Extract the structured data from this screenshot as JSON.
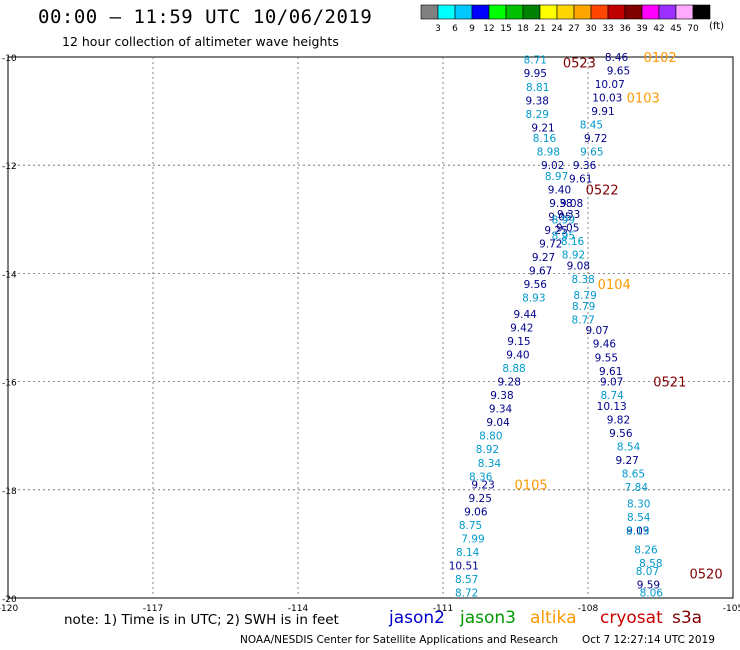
{
  "header": {
    "title": "00:00 – 11:59 UTC 10/06/2019",
    "subtitle": "12 hour collection of altimeter wave heights"
  },
  "colorbar": {
    "unit": "(ft)",
    "levels": [
      "3",
      "6",
      "9",
      "12",
      "15",
      "18",
      "21",
      "24",
      "27",
      "30",
      "33",
      "36",
      "39",
      "42",
      "45",
      "70"
    ],
    "colors": [
      "#808080",
      "#00ffff",
      "#00c8ff",
      "#0000ff",
      "#00ff00",
      "#00c000",
      "#008000",
      "#ffff00",
      "#ffd700",
      "#ffa500",
      "#ff4500",
      "#c00000",
      "#800000",
      "#ff00ff",
      "#9b30ff",
      "#ffaaff",
      "#000000"
    ]
  },
  "chart_data": {
    "type": "scatter",
    "title": "00:00 – 11:59 UTC 10/06/2019",
    "subtitle": "12 hour collection of altimeter wave heights",
    "xlim": [
      -120,
      -105
    ],
    "ylim": [
      -20,
      -10
    ],
    "x_ticks": [
      "-120",
      "-117",
      "-114",
      "-111",
      "-108",
      "-105"
    ],
    "y_ticks": [
      "-10",
      "-12",
      "-14",
      "-16",
      "-18",
      "-20"
    ],
    "grid": "dashed",
    "series": [
      {
        "name": "jason2",
        "color": "#00008b",
        "points": [
          {
            "lon": -109.09,
            "lat": -10.3,
            "label": "9.95"
          },
          {
            "lon": -109.05,
            "lat": -10.8,
            "label": "9.38"
          },
          {
            "lon": -108.93,
            "lat": -11.3,
            "label": "9.21"
          },
          {
            "lon": -108.73,
            "lat": -12.0,
            "label": "9.02"
          },
          {
            "lon": -108.59,
            "lat": -12.45,
            "label": "9.40"
          },
          {
            "lon": -108.56,
            "lat": -12.7,
            "label": "9.38"
          },
          {
            "lon": -108.58,
            "lat": -12.95,
            "label": "9.05"
          },
          {
            "lon": -108.66,
            "lat": -13.2,
            "label": "9.25"
          },
          {
            "lon": -108.77,
            "lat": -13.45,
            "label": "9.72"
          },
          {
            "lon": -108.92,
            "lat": -13.7,
            "label": "9.27"
          },
          {
            "lon": -108.98,
            "lat": -13.95,
            "label": "9.67"
          },
          {
            "lon": -109.09,
            "lat": -14.2,
            "label": "9.56"
          },
          {
            "lon": -109.3,
            "lat": -14.75,
            "label": "9.44"
          },
          {
            "lon": -109.37,
            "lat": -15.0,
            "label": "9.42"
          },
          {
            "lon": -109.43,
            "lat": -15.25,
            "label": "9.15"
          },
          {
            "lon": -109.45,
            "lat": -15.5,
            "label": "9.40"
          },
          {
            "lon": -109.63,
            "lat": -16.0,
            "label": "9.28"
          },
          {
            "lon": -109.78,
            "lat": -16.25,
            "label": "9.38"
          },
          {
            "lon": -109.81,
            "lat": -16.5,
            "label": "9.34"
          },
          {
            "lon": -109.86,
            "lat": -16.75,
            "label": "9.04"
          },
          {
            "lon": -110.17,
            "lat": -17.9,
            "label": "9.23"
          },
          {
            "lon": -110.23,
            "lat": -18.15,
            "label": "9.25"
          },
          {
            "lon": -110.32,
            "lat": -18.4,
            "label": "9.06"
          },
          {
            "lon": -110.57,
            "lat": -19.4,
            "label": "10.51"
          },
          {
            "lon": -107.37,
            "lat": -10.25,
            "label": "9.65"
          },
          {
            "lon": -107.55,
            "lat": -10.5,
            "label": "10.07"
          },
          {
            "lon": -107.6,
            "lat": -10.75,
            "label": "10.03"
          },
          {
            "lon": -107.69,
            "lat": -11.0,
            "label": "9.91"
          },
          {
            "lon": -107.84,
            "lat": -11.5,
            "label": "9.72"
          },
          {
            "lon": -108.07,
            "lat": -12.0,
            "label": "9.36"
          },
          {
            "lon": -108.15,
            "lat": -12.25,
            "label": "9.61"
          },
          {
            "lon": -108.34,
            "lat": -12.7,
            "label": "9.08"
          },
          {
            "lon": -108.4,
            "lat": -12.9,
            "label": "9.33"
          },
          {
            "lon": -108.42,
            "lat": -13.15,
            "label": "9.05"
          },
          {
            "lon": -108.2,
            "lat": -13.85,
            "label": "9.08"
          },
          {
            "lon": -107.81,
            "lat": -15.05,
            "label": "9.07"
          },
          {
            "lon": -107.66,
            "lat": -15.3,
            "label": "9.46"
          },
          {
            "lon": -107.62,
            "lat": -15.55,
            "label": "9.55"
          },
          {
            "lon": -107.53,
            "lat": -15.8,
            "label": "9.61"
          },
          {
            "lon": -107.51,
            "lat": -16.0,
            "label": "9.07"
          },
          {
            "lon": -107.51,
            "lat": -16.45,
            "label": "10.13"
          },
          {
            "lon": -107.37,
            "lat": -16.7,
            "label": "9.82"
          },
          {
            "lon": -107.32,
            "lat": -16.95,
            "label": "9.56"
          },
          {
            "lon": -107.19,
            "lat": -17.45,
            "label": "9.27"
          },
          {
            "lon": -106.97,
            "lat": -18.75,
            "label": "9.03"
          },
          {
            "lon": -106.75,
            "lat": -19.75,
            "label": "9.59"
          },
          {
            "lon": -107.41,
            "lat": -10.0,
            "label": "8.46"
          }
        ]
      },
      {
        "name": "jason2 (light)",
        "color": "#0099cc",
        "points": [
          {
            "lon": -109.09,
            "lat": -10.05,
            "label": "8.71"
          },
          {
            "lon": -109.04,
            "lat": -10.55,
            "label": "8.81"
          },
          {
            "lon": -109.05,
            "lat": -11.05,
            "label": "8.29"
          },
          {
            "lon": -108.9,
            "lat": -11.5,
            "label": "8.16"
          },
          {
            "lon": -108.82,
            "lat": -11.75,
            "label": "8.98"
          },
          {
            "lon": -108.65,
            "lat": -12.2,
            "label": "8.97"
          },
          {
            "lon": -108.51,
            "lat": -13.0,
            "label": "8.99"
          },
          {
            "lon": -108.51,
            "lat": -13.3,
            "label": "8.95"
          },
          {
            "lon": -108.32,
            "lat": -13.4,
            "label": "8.16"
          },
          {
            "lon": -108.3,
            "lat": -13.65,
            "label": "8.92"
          },
          {
            "lon": -108.1,
            "lat": -14.1,
            "label": "8.38"
          },
          {
            "lon": -108.06,
            "lat": -14.4,
            "label": "8.79"
          },
          {
            "lon": -108.09,
            "lat": -14.6,
            "label": "8.79"
          },
          {
            "lon": -108.1,
            "lat": -14.85,
            "label": "8.77"
          },
          {
            "lon": -109.12,
            "lat": -14.45,
            "label": "8.93"
          },
          {
            "lon": -109.53,
            "lat": -15.75,
            "label": "8.88"
          },
          {
            "lon": -107.5,
            "lat": -16.25,
            "label": "8.74"
          },
          {
            "lon": -107.16,
            "lat": -17.2,
            "label": "8.54"
          },
          {
            "lon": -107.06,
            "lat": -17.7,
            "label": "8.65"
          },
          {
            "lon": -107.0,
            "lat": -17.95,
            "label": "7.84"
          },
          {
            "lon": -106.95,
            "lat": -18.25,
            "label": "8.30"
          },
          {
            "lon": -106.95,
            "lat": -18.5,
            "label": "8.54"
          },
          {
            "lon": -106.97,
            "lat": -18.75,
            "label": "8.19"
          },
          {
            "lon": -106.8,
            "lat": -19.1,
            "label": "8.26"
          },
          {
            "lon": -106.7,
            "lat": -19.35,
            "label": "8.58"
          },
          {
            "lon": -106.77,
            "lat": -19.5,
            "label": "8.07"
          },
          {
            "lon": -106.69,
            "lat": -19.9,
            "label": "8.06"
          },
          {
            "lon": -110.01,
            "lat": -17.0,
            "label": "8.80"
          },
          {
            "lon": -110.08,
            "lat": -17.25,
            "label": "8.92"
          },
          {
            "lon": -110.04,
            "lat": -17.5,
            "label": "8.34"
          },
          {
            "lon": -110.22,
            "lat": -17.75,
            "label": "8.36"
          },
          {
            "lon": -110.43,
            "lat": -18.65,
            "label": "8.75"
          },
          {
            "lon": -110.38,
            "lat": -18.9,
            "label": "7.99"
          },
          {
            "lon": -110.49,
            "lat": -19.15,
            "label": "8.14"
          },
          {
            "lon": -110.51,
            "lat": -19.65,
            "label": "8.57"
          },
          {
            "lon": -110.51,
            "lat": -19.9,
            "label": "8.72"
          },
          {
            "lon": -107.93,
            "lat": -11.25,
            "label": "8.45"
          },
          {
            "lon": -107.92,
            "lat": -11.75,
            "label": "9.65"
          }
        ]
      }
    ],
    "time_labels": [
      {
        "label": "0523",
        "lon": -108.52,
        "lat": -10.1,
        "color": "#800000"
      },
      {
        "label": "0102",
        "lon": -106.85,
        "lat": -10.0,
        "color": "#ff9900"
      },
      {
        "label": "0103",
        "lon": -107.2,
        "lat": -10.75,
        "color": "#ff9900"
      },
      {
        "label": "0522",
        "lon": -108.05,
        "lat": -12.45,
        "color": "#800000"
      },
      {
        "label": "0104",
        "lon": -107.8,
        "lat": -14.2,
        "color": "#ff9900"
      },
      {
        "label": "0521",
        "lon": -106.65,
        "lat": -16.0,
        "color": "#800000"
      },
      {
        "label": "0105",
        "lon": -109.52,
        "lat": -17.9,
        "color": "#ff9900"
      },
      {
        "label": "0520",
        "lon": -105.9,
        "lat": -19.55,
        "color": "#800000"
      }
    ]
  },
  "legend": {
    "note": "note: 1) Time is in UTC; 2) SWH is in feet",
    "satellites": [
      {
        "name": "jason2",
        "color": "#0000cc"
      },
      {
        "name": "jason3",
        "color": "#009900"
      },
      {
        "name": "altika",
        "color": "#ff9900"
      },
      {
        "name": "cryosat",
        "color": "#cc0000"
      },
      {
        "name": "s3a",
        "color": "#800000"
      }
    ]
  },
  "footer": {
    "credit": "NOAA/NESDIS Center for Satellite Applications and Research",
    "timestamp": "Oct  7 12:27:14 UTC 2019"
  }
}
